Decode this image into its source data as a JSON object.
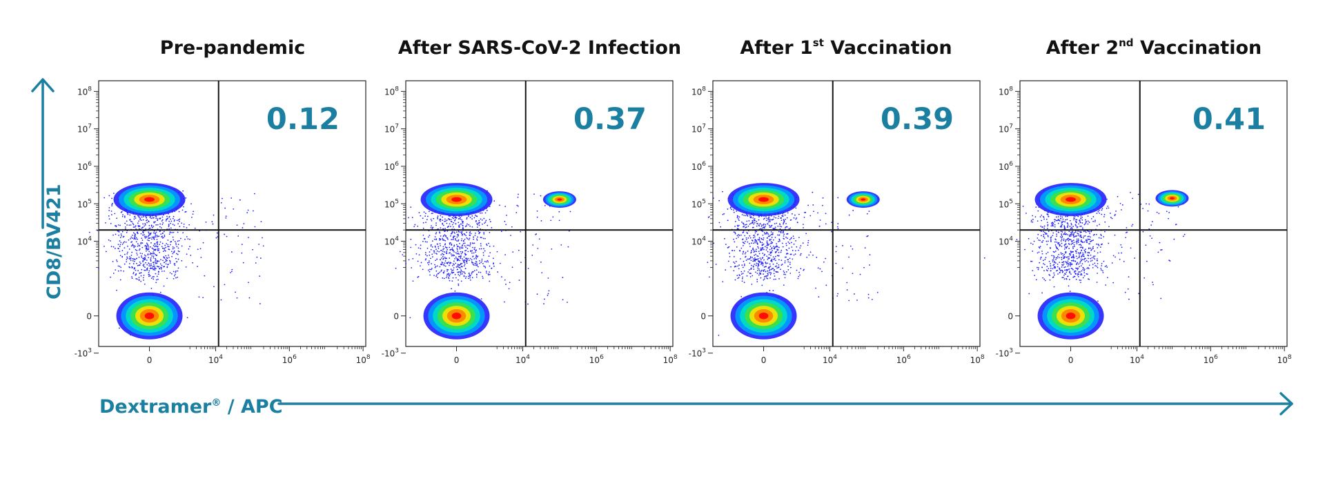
{
  "colors": {
    "accent": "#1a7fa0",
    "title": "#111111",
    "density_scale": [
      "#2020ff",
      "#00a0ff",
      "#00e0c0",
      "#40e040",
      "#ffe000",
      "#ff8000",
      "#ff0000"
    ]
  },
  "axes": {
    "x_label_main": "Dextramer",
    "x_label_reg": "®",
    "x_label_rest": " / APC",
    "y_label": "CD8/BV421"
  },
  "chart_data": [
    {
      "type": "scatter",
      "title_pre": "Pre-pandemic",
      "title_sup": "",
      "title_post": "",
      "quadrant_value": "0.12",
      "xlabel": "Dextramer® / APC",
      "ylabel": "CD8/BV421",
      "x_scale": "biexponential",
      "y_scale": "biexponential",
      "x_ticks": [
        "0",
        "10^4",
        "10^6",
        "10^8"
      ],
      "y_ticks": [
        "-10^3",
        "0",
        "10^4",
        "10^5",
        "10^6",
        "10^7",
        "10^8"
      ],
      "gate_x": 12000,
      "gate_y": 20000,
      "populations": [
        {
          "name": "",
          "x_center": 0,
          "y_center": 130000
        },
        {
          "name": "",
          "x_center": 0,
          "y_center": 0
        }
      ]
    },
    {
      "type": "scatter",
      "title_pre": "After SARS-CoV-2 Infection",
      "title_sup": "",
      "title_post": "",
      "quadrant_value": "0.37",
      "xlabel": "Dextramer® / APC",
      "ylabel": "CD8/BV421",
      "x_scale": "biexponential",
      "y_scale": "biexponential",
      "x_ticks": [
        "0",
        "10^4",
        "10^6",
        "10^8"
      ],
      "y_ticks": [
        "-10^3",
        "0",
        "10^4",
        "10^5",
        "10^6",
        "10^7",
        "10^8"
      ],
      "gate_x": 12000,
      "gate_y": 20000,
      "populations": [
        {
          "name": "",
          "x_center": 0,
          "y_center": 130000
        },
        {
          "name": "",
          "x_center": 0,
          "y_center": 0
        },
        {
          "name": "",
          "x_center": 100000,
          "y_center": 130000
        }
      ]
    },
    {
      "type": "scatter",
      "title_pre": "After 1",
      "title_sup": "st",
      "title_post": " Vaccination",
      "quadrant_value": "0.39",
      "xlabel": "Dextramer® / APC",
      "ylabel": "CD8/BV421",
      "x_scale": "biexponential",
      "y_scale": "biexponential",
      "x_ticks": [
        "0",
        "10^4",
        "10^6",
        "10^8"
      ],
      "y_ticks": [
        "-10^3",
        "0",
        "10^4",
        "10^5",
        "10^6",
        "10^7",
        "10^8"
      ],
      "gate_x": 12000,
      "gate_y": 20000,
      "populations": [
        {
          "name": "",
          "x_center": 0,
          "y_center": 130000
        },
        {
          "name": "",
          "x_center": 0,
          "y_center": 0
        },
        {
          "name": "",
          "x_center": 80000,
          "y_center": 130000
        }
      ]
    },
    {
      "type": "scatter",
      "title_pre": "After 2",
      "title_sup": "nd",
      "title_post": " Vaccination",
      "quadrant_value": "0.41",
      "xlabel": "Dextramer® / APC",
      "ylabel": "CD8/BV421",
      "x_scale": "biexponential",
      "y_scale": "biexponential",
      "x_ticks": [
        "0",
        "10^4",
        "10^6",
        "10^8"
      ],
      "y_ticks": [
        "-10^3",
        "0",
        "10^4",
        "10^5",
        "10^6",
        "10^7",
        "10^8"
      ],
      "gate_x": 12000,
      "gate_y": 20000,
      "populations": [
        {
          "name": "",
          "x_center": 0,
          "y_center": 130000
        },
        {
          "name": "",
          "x_center": 0,
          "y_center": 0
        },
        {
          "name": "",
          "x_center": 90000,
          "y_center": 140000
        }
      ]
    }
  ]
}
